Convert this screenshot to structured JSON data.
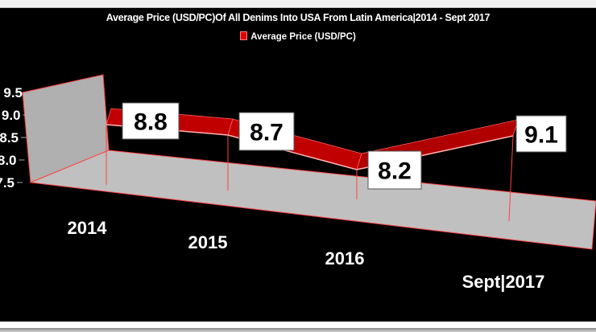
{
  "chart_data": {
    "type": "line",
    "style": "3d-ribbon",
    "title": "Average Price (USD/PC)Of All Denims Into USA From Latin America|2014 - Sept 2017",
    "legend": {
      "entries": [
        "Average Price (USD/PC)"
      ],
      "placement": "top"
    },
    "categories": [
      "2014",
      "2015",
      "2016",
      "Sept|2017"
    ],
    "series": [
      {
        "name": "Average Price (USD/PC)",
        "values": [
          8.8,
          8.7,
          8.2,
          9.1
        ],
        "color": "#c00000"
      }
    ],
    "data_labels": [
      "8.8",
      "8.7",
      "8.2",
      "9.1"
    ],
    "xlabel": "",
    "ylabel": "",
    "y_ticks": [
      "7.5",
      "8.0",
      "8.5",
      "9.0",
      "9.5"
    ],
    "y_tick_values": [
      7.5,
      8.0,
      8.5,
      9.0,
      9.5
    ],
    "ylim": [
      7.5,
      9.5
    ],
    "grid": false,
    "colors": {
      "background": "#000000",
      "walls": "#b0b0b0",
      "floor": "#c0c0c0",
      "edges": "#ff4040",
      "series": "#c00000"
    }
  }
}
